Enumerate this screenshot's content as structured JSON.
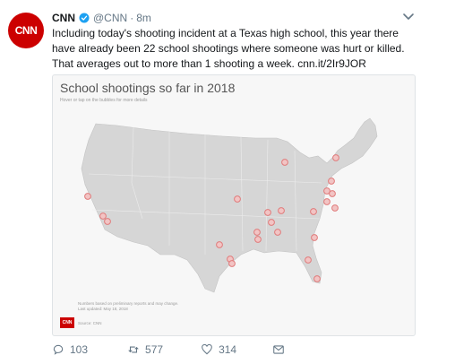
{
  "tweet": {
    "avatar_logo": "CNN",
    "display_name": "CNN",
    "handle": "@CNN",
    "separator": "·",
    "time": "8m",
    "text": "Including today's shooting incident at a Texas high school, this year there have already been 22 school shootings where someone was hurt or killed. That averages out to more than 1 shooting a week.",
    "link": "cnn.it/2Ir9JOR"
  },
  "card": {
    "title": "School shootings so far in 2018",
    "subtitle": "Hover or tap on the bubbles for more details",
    "footnote_1": "Numbers based on preliminary reports and may change.",
    "footnote_2": "Last updated: May 18, 2018",
    "source_logo": "CNN",
    "source": "Source: CNN",
    "marker_color": "#e07b7b",
    "map_color": "#d6d6d6"
  },
  "actions": {
    "replies": "103",
    "retweets": "577",
    "likes": "314"
  },
  "colors": {
    "brand": "#cc0000",
    "verified": "#1da1f2",
    "muted": "#657786"
  }
}
